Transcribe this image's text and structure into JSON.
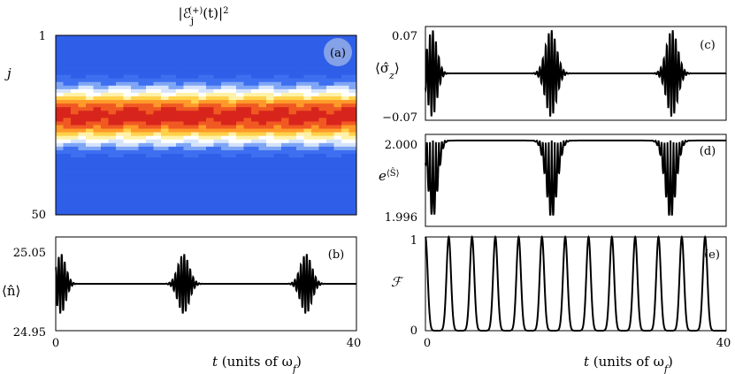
{
  "chart_data": [
    {
      "id": "a",
      "type": "heatmap",
      "panel_label": "(a)",
      "title_parts": {
        "base": "|ℰ",
        "sub": "j",
        "sup": "(+)",
        "tail": "(t)|",
        "pow": "2"
      },
      "ylabel": "j",
      "y_ticks": [
        "1",
        "50"
      ],
      "rows": 50,
      "x_range": [
        0,
        40
      ],
      "colormap": [
        "#2f5fe8",
        "#3e6ff0",
        "#7fa6f5",
        "#d6e4fb",
        "#ffffff",
        "#fff2a8",
        "#ffd24a",
        "#ff9a2a",
        "#f05a22",
        "#d8251c"
      ],
      "row_intensity": [
        0,
        0,
        0,
        0,
        0,
        0,
        0,
        0,
        0,
        0,
        0,
        0.05,
        0.1,
        0.18,
        0.28,
        0.4,
        0.52,
        0.64,
        0.76,
        0.86,
        0.93,
        0.98,
        1,
        0.98,
        0.93,
        0.86,
        0.76,
        0.64,
        0.52,
        0.4,
        0.28,
        0.18,
        0.1,
        0.05,
        0,
        0,
        0,
        0,
        0,
        0,
        0,
        0,
        0,
        0,
        0,
        0,
        0,
        0,
        0,
        0
      ]
    },
    {
      "id": "b",
      "type": "line",
      "panel_label": "(b)",
      "ylabel": "⟨n̂⟩",
      "y_ticks": [
        "25.05",
        "24.95"
      ],
      "ylim": [
        24.95,
        25.05
      ],
      "xlim": [
        0,
        40
      ],
      "x_ticks": [
        "0",
        "40"
      ],
      "baseline": 25.0,
      "bursts": [
        {
          "center": 0.7,
          "width": 0.9,
          "amp": 0.032,
          "freq": 4.2
        },
        {
          "center": 17.0,
          "width": 1.05,
          "amp": 0.032,
          "freq": 4.2
        },
        {
          "center": 33.3,
          "width": 1.05,
          "amp": 0.032,
          "freq": 4.2
        }
      ]
    },
    {
      "id": "c",
      "type": "line",
      "panel_label": "(c)",
      "ylabel": "⟨σ̂z⟩",
      "y_ticks": [
        "0.07",
        "−0.07"
      ],
      "ylim": [
        -0.07,
        0.07
      ],
      "xlim": [
        0,
        40
      ],
      "baseline": 0.0,
      "bursts": [
        {
          "center": 0.9,
          "width": 0.9,
          "amp": 0.065,
          "freq": 4.2
        },
        {
          "center": 16.7,
          "width": 1.05,
          "amp": 0.065,
          "freq": 4.2
        },
        {
          "center": 32.8,
          "width": 1.05,
          "amp": 0.065,
          "freq": 4.2
        }
      ]
    },
    {
      "id": "d",
      "type": "line",
      "panel_label": "(d)",
      "ylabel": "e⟨Ŝ⟩",
      "y_ticks": [
        "2.000",
        "1.996"
      ],
      "ylim": [
        1.9958,
        2.0003
      ],
      "xlim": [
        0,
        40
      ],
      "baseline": 2.0,
      "dips": [
        {
          "center": 1.0,
          "width": 0.9,
          "amp": 0.0038,
          "freq": 4.2
        },
        {
          "center": 16.8,
          "width": 1.05,
          "amp": 0.0038,
          "freq": 4.2
        },
        {
          "center": 32.6,
          "width": 1.05,
          "amp": 0.0038,
          "freq": 4.2
        }
      ]
    },
    {
      "id": "e",
      "type": "line",
      "panel_label": "(e)",
      "ylabel": "ℱ",
      "y_ticks": [
        "1",
        "0"
      ],
      "ylim": [
        0,
        1
      ],
      "xlim": [
        0,
        40
      ],
      "x_ticks": [
        "0",
        "40"
      ],
      "revival_period": 3.1,
      "revivals": 13
    }
  ],
  "xlabel_left": {
    "prefix": "t",
    "text": " (units of ω",
    "sub": "f",
    "close": ")"
  },
  "xlabel_right": {
    "prefix": "t",
    "text": " (units of ω",
    "sub": "f",
    "close": ")"
  }
}
